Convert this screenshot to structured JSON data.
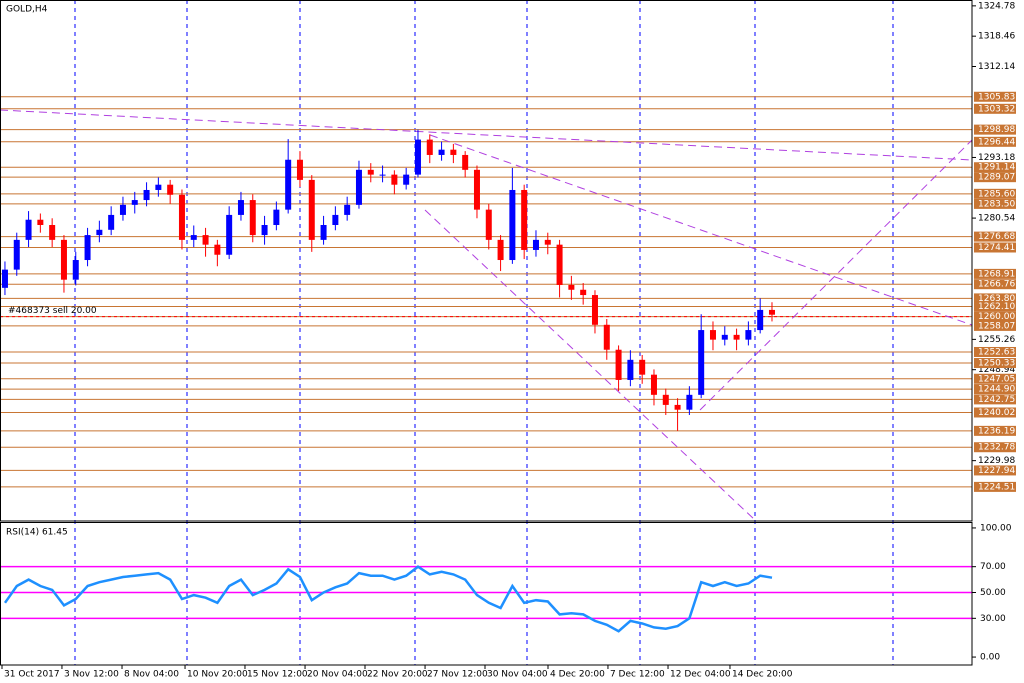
{
  "chart_data": [
    {
      "type": "candlestick",
      "title": "GOLD,H4",
      "annotation": "#468373 sell 20.00",
      "annotation_level": 1260.0,
      "up_color": "#0000ff",
      "down_color": "#ff0000",
      "level_color": "#c87533",
      "xlim": [
        -0.42,
        81.95
      ],
      "ylim": [
        1217.4,
        1326.0
      ],
      "xticks": [
        {
          "value": -0.25,
          "label": "31 Oct 2017"
        },
        {
          "value": 4.83,
          "label": "3 Nov 12:00"
        },
        {
          "value": 9.92,
          "label": "8 Nov 04:00"
        },
        {
          "value": 15.26,
          "label": "10 Nov 20:00"
        },
        {
          "value": 20.34,
          "label": "15 Nov 12:00"
        },
        {
          "value": 25.43,
          "label": "20 Nov 04:00"
        },
        {
          "value": 30.51,
          "label": "22 Nov 20:00"
        },
        {
          "value": 35.6,
          "label": "27 Nov 12:00"
        },
        {
          "value": 40.68,
          "label": "30 Nov 04:00"
        },
        {
          "value": 46.02,
          "label": "4 Dec 20:00"
        },
        {
          "value": 51.1,
          "label": "7 Dec 12:00"
        },
        {
          "value": 56.19,
          "label": "12 Dec 04:00"
        },
        {
          "value": 61.44,
          "label": "14 Dec 20:00"
        }
      ],
      "yticks": [
        1324.78,
        1318.46,
        1312.14,
        1293.18,
        1280.54,
        1255.26,
        1248.94,
        1229.98
      ],
      "levels": [
        1305.83,
        1303.32,
        1298.98,
        1296.44,
        1291.14,
        1289.07,
        {
          "value": 1285.6,
          "label": "1285.60"
        },
        {
          "value": 1283.5,
          "label": "1283.50"
        },
        1276.68,
        1274.41,
        1268.91,
        1266.76,
        {
          "value": 1263.8,
          "label": "1263.80"
        },
        {
          "value": 1262.1,
          "label": "1262.10"
        },
        {
          "value": 1260,
          "label": "1260.00"
        },
        1258.07,
        1252.63,
        1250.33,
        1247.05,
        {
          "value": 1244.9,
          "label": "1244.90"
        },
        1242.75,
        1240.02,
        1236.19,
        1232.78,
        1227.94,
        1224.51
      ],
      "ohlc": [
        [
          1266.0,
          1271.5,
          1264.5,
          1269.8
        ],
        [
          1269.8,
          1277.5,
          1268.5,
          1276.0
        ],
        [
          1276.0,
          1282.0,
          1274.5,
          1280.2
        ],
        [
          1280.2,
          1281.5,
          1277.5,
          1279.1
        ],
        [
          1279.1,
          1280.5,
          1274.5,
          1276.0
        ],
        [
          1276.0,
          1277.0,
          1265.0,
          1267.7
        ],
        [
          1267.7,
          1273.5,
          1266.5,
          1271.8
        ],
        [
          1271.8,
          1278.5,
          1270.5,
          1277.0
        ],
        [
          1277.0,
          1280.0,
          1275.5,
          1278.1
        ],
        [
          1278.1,
          1283.0,
          1277.0,
          1281.2
        ],
        [
          1281.2,
          1285.0,
          1280.0,
          1283.3
        ],
        [
          1283.3,
          1286.0,
          1281.5,
          1284.3
        ],
        [
          1284.3,
          1288.0,
          1283.0,
          1286.4
        ],
        [
          1286.4,
          1289.0,
          1285.0,
          1287.5
        ],
        [
          1287.5,
          1288.5,
          1283.5,
          1285.4
        ],
        [
          1285.4,
          1286.5,
          1274.0,
          1276.0
        ],
        [
          1276.0,
          1279.0,
          1274.5,
          1277.0
        ],
        [
          1277.0,
          1278.5,
          1272.5,
          1275.0
        ],
        [
          1275.0,
          1276.0,
          1270.5,
          1272.9
        ],
        [
          1272.9,
          1283.0,
          1272.0,
          1281.2
        ],
        [
          1281.2,
          1286.0,
          1280.0,
          1284.3
        ],
        [
          1284.3,
          1285.5,
          1275.5,
          1277.0
        ],
        [
          1277.0,
          1281.0,
          1275.0,
          1279.1
        ],
        [
          1279.1,
          1284.0,
          1278.0,
          1282.3
        ],
        [
          1282.3,
          1297.0,
          1281.5,
          1292.7
        ],
        [
          1292.7,
          1294.5,
          1287.0,
          1288.5
        ],
        [
          1288.5,
          1289.5,
          1273.5,
          1276.0
        ],
        [
          1276.0,
          1281.0,
          1275.0,
          1279.1
        ],
        [
          1279.1,
          1283.0,
          1278.0,
          1281.2
        ],
        [
          1281.2,
          1285.0,
          1280.0,
          1283.3
        ],
        [
          1283.3,
          1292.5,
          1282.5,
          1290.6
        ],
        [
          1290.6,
          1292.0,
          1288.0,
          1289.6
        ],
        [
          1289.6,
          1291.5,
          1288.0,
          1289.6
        ],
        [
          1289.6,
          1290.5,
          1285.5,
          1287.5
        ],
        [
          1287.5,
          1291.0,
          1286.5,
          1289.6
        ],
        [
          1289.6,
          1299.0,
          1289.0,
          1296.9
        ],
        [
          1296.9,
          1298.0,
          1292.0,
          1293.7
        ],
        [
          1293.7,
          1296.5,
          1292.5,
          1294.8
        ],
        [
          1294.8,
          1296.0,
          1292.0,
          1293.7
        ],
        [
          1293.7,
          1294.5,
          1289.0,
          1290.6
        ],
        [
          1290.6,
          1291.5,
          1280.5,
          1282.3
        ],
        [
          1282.3,
          1283.5,
          1274.0,
          1276.0
        ],
        [
          1276.0,
          1277.0,
          1269.5,
          1271.8
        ],
        [
          1271.8,
          1291.0,
          1271.0,
          1286.4
        ],
        [
          1286.4,
          1287.5,
          1272.0,
          1273.9
        ],
        [
          1273.9,
          1278.0,
          1272.5,
          1276.0
        ],
        [
          1276.0,
          1277.5,
          1273.0,
          1275.0
        ],
        [
          1275.0,
          1276.0,
          1264.0,
          1266.6
        ],
        [
          1266.6,
          1268.5,
          1263.5,
          1265.6
        ],
        [
          1265.6,
          1267.0,
          1262.5,
          1264.5
        ],
        [
          1264.5,
          1265.5,
          1256.5,
          1258.3
        ],
        [
          1258.3,
          1259.5,
          1251.0,
          1253.1
        ],
        [
          1253.1,
          1254.0,
          1244.5,
          1246.8
        ],
        [
          1246.8,
          1253.0,
          1245.5,
          1251.0
        ],
        [
          1251.0,
          1252.0,
          1246.0,
          1247.9
        ],
        [
          1247.9,
          1249.0,
          1241.5,
          1243.7
        ],
        [
          1243.7,
          1245.0,
          1239.5,
          1241.6
        ],
        [
          1241.6,
          1243.0,
          1236.2,
          1240.6
        ],
        [
          1240.6,
          1245.5,
          1239.5,
          1243.7
        ],
        [
          1243.7,
          1260.5,
          1243.0,
          1257.2
        ],
        [
          1257.2,
          1259.0,
          1253.0,
          1255.2
        ],
        [
          1255.2,
          1258.0,
          1254.0,
          1256.2
        ],
        [
          1256.2,
          1257.5,
          1253.0,
          1255.2
        ],
        [
          1255.2,
          1259.0,
          1254.0,
          1257.2
        ],
        [
          1257.2,
          1263.8,
          1256.5,
          1261.4
        ],
        [
          1261.4,
          1263.0,
          1259.0,
          1260.4
        ]
      ]
    },
    {
      "type": "line",
      "title": "RSI(14) 61.45",
      "color": "#1e90ff",
      "level_color": "#ff00ff",
      "ylim": [
        -6.15,
        104.6
      ],
      "yticks": [
        {
          "value": 100,
          "label": "100.00"
        },
        {
          "value": 70,
          "label": "70.00"
        },
        {
          "value": 50,
          "label": "50.00"
        },
        {
          "value": 30,
          "label": "30.00"
        },
        {
          "value": 0,
          "label": "0.00"
        }
      ],
      "levels": [
        70,
        50,
        30
      ],
      "values": [
        42,
        55,
        60,
        55,
        52,
        40,
        45,
        55,
        58,
        60,
        62,
        63,
        64,
        65,
        60,
        45,
        48,
        46,
        42,
        55,
        60,
        48,
        52,
        57,
        68,
        62,
        44,
        50,
        54,
        57,
        65,
        63,
        63,
        60,
        63,
        70,
        64,
        66,
        64,
        60,
        48,
        42,
        38,
        55,
        42,
        44,
        43,
        33,
        34,
        33,
        28,
        25,
        20,
        28,
        26,
        23,
        22,
        24,
        30,
        58,
        55,
        58,
        55,
        57,
        63,
        61.45
      ]
    }
  ]
}
